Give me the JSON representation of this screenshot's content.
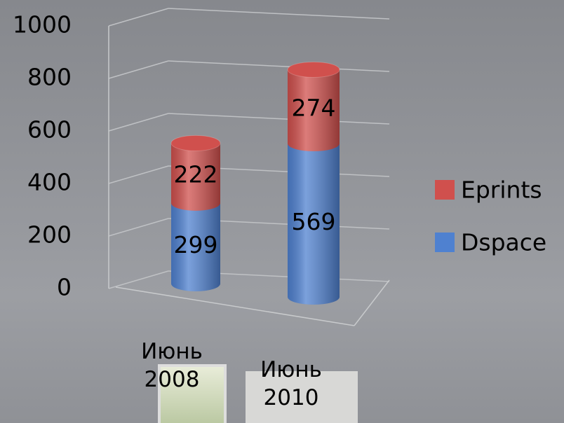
{
  "chart_data": {
    "type": "stacked-cylinder",
    "categories": [
      "Июнь 2008",
      "Июнь 2010"
    ],
    "series": [
      {
        "name": "Dspace",
        "color": "#4f81d0",
        "values": [
          299,
          569
        ]
      },
      {
        "name": "Eprints",
        "color": "#d0504d",
        "values": [
          222,
          274
        ]
      }
    ],
    "ylim": [
      0,
      1000
    ],
    "yticks": [
      0,
      200,
      400,
      600,
      800,
      1000
    ],
    "grid": true,
    "legend": "right"
  }
}
